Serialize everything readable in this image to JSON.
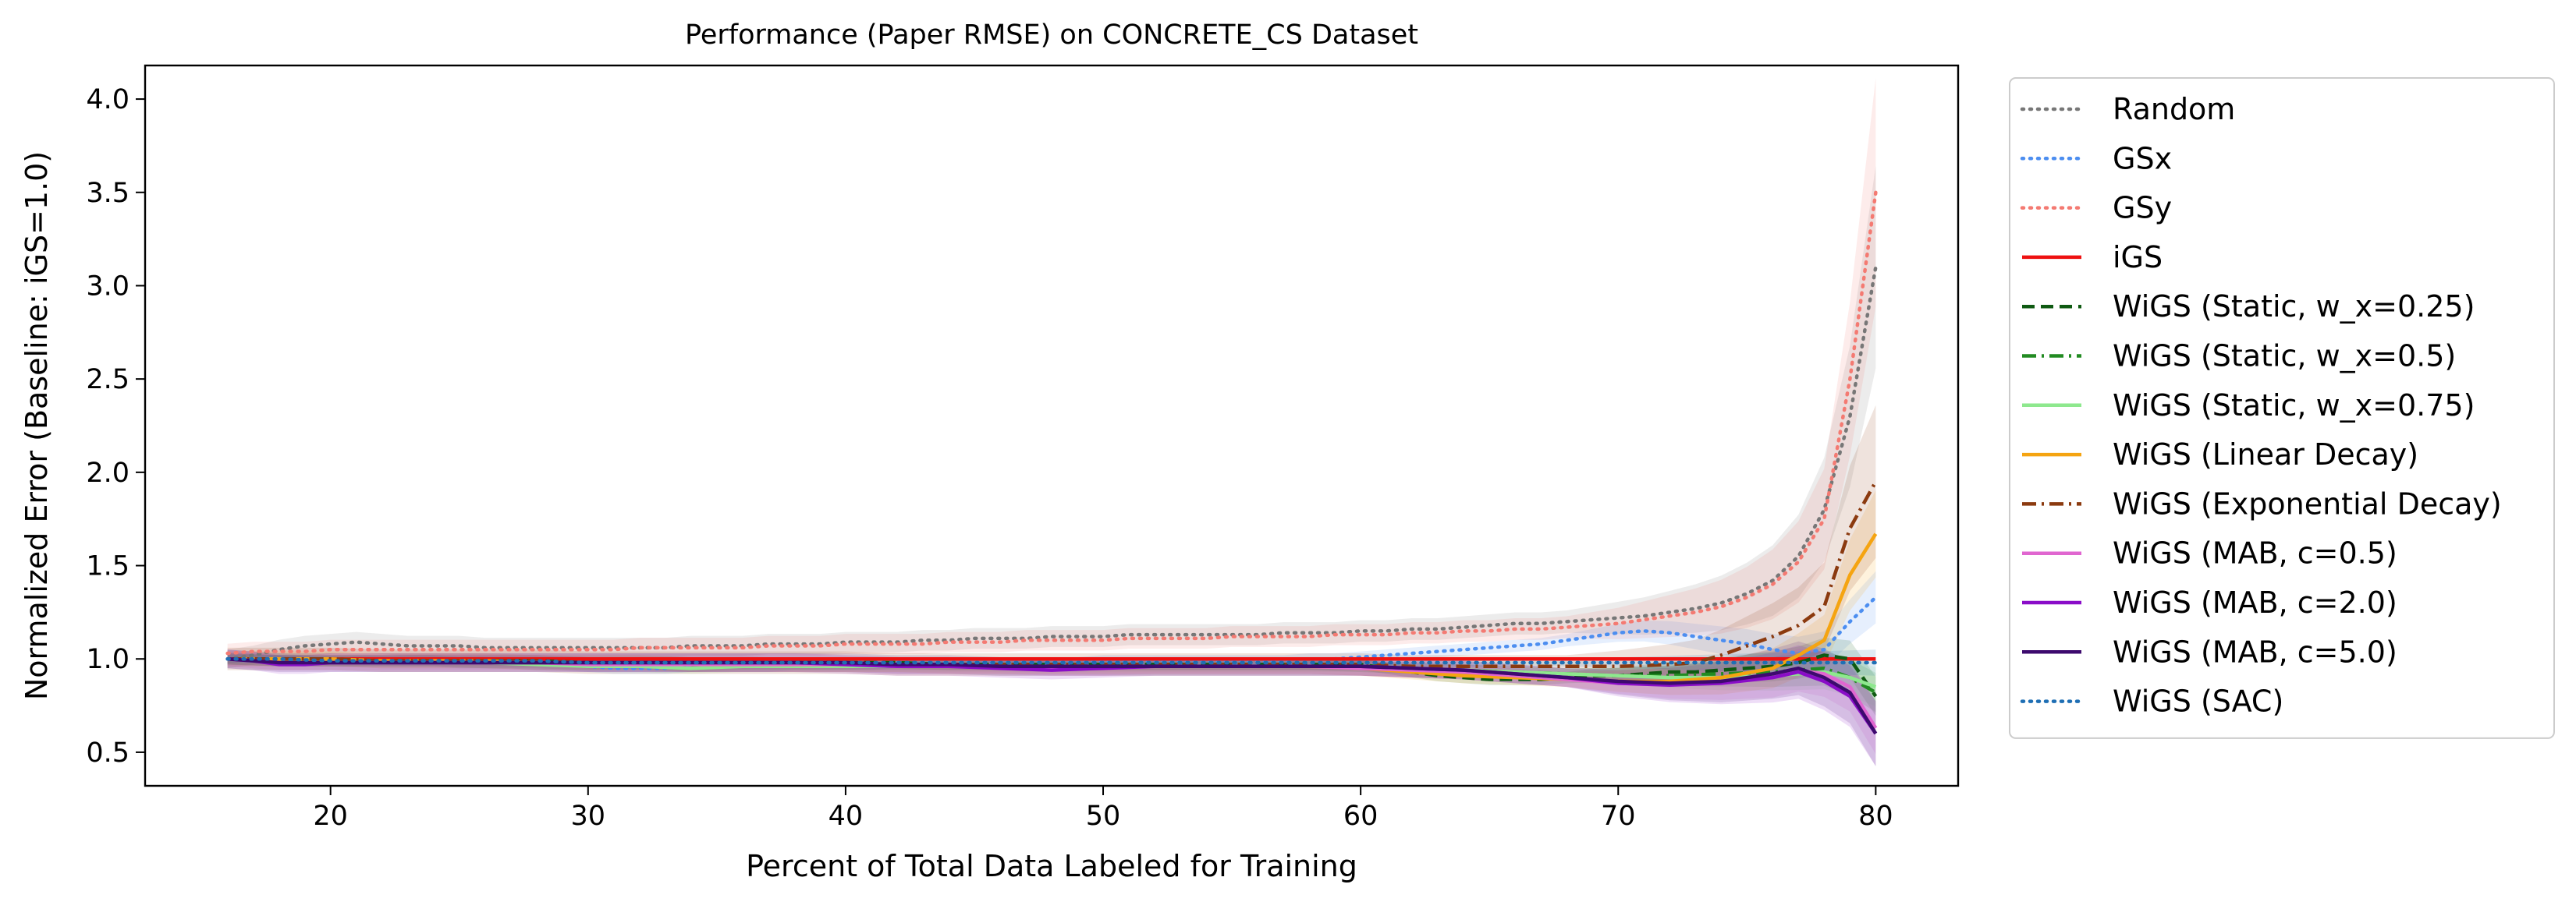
{
  "chart_data": {
    "type": "line",
    "title": "Performance (Paper RMSE) on CONCRETE_CS Dataset",
    "xlabel": "Percent of Total Data Labeled for Training",
    "ylabel": "Normalized Error (Baseline: iGS=1.0)",
    "xlim": [
      12.8,
      83.2
    ],
    "ylim": [
      0.32,
      4.18
    ],
    "xticks": [
      20,
      30,
      40,
      50,
      60,
      70,
      80
    ],
    "yticks": [
      0.5,
      1.0,
      1.5,
      2.0,
      2.5,
      3.0,
      3.5,
      4.0
    ],
    "xtick_labels": [
      "20",
      "30",
      "40",
      "50",
      "60",
      "70",
      "80"
    ],
    "ytick_labels": [
      "0.5",
      "1.0",
      "1.5",
      "2.0",
      "2.5",
      "3.0",
      "3.5",
      "4.0"
    ],
    "grid": false,
    "legend_position": "outside-right",
    "series": [
      {
        "name": "Random",
        "color": "#777777",
        "dash": "dotted",
        "x": [
          16,
          17,
          18,
          19,
          20,
          21,
          22,
          23,
          24,
          25,
          26,
          27,
          28,
          29,
          30,
          31,
          32,
          33,
          34,
          35,
          36,
          37,
          38,
          39,
          40,
          41,
          42,
          43,
          44,
          45,
          46,
          47,
          48,
          49,
          50,
          51,
          52,
          53,
          54,
          55,
          56,
          57,
          58,
          59,
          60,
          61,
          62,
          63,
          64,
          65,
          66,
          67,
          68,
          69,
          70,
          71,
          72,
          73,
          74,
          75,
          76,
          77,
          78,
          79,
          80
        ],
        "y": [
          1.0,
          1.02,
          1.05,
          1.07,
          1.08,
          1.09,
          1.08,
          1.07,
          1.07,
          1.07,
          1.06,
          1.06,
          1.06,
          1.06,
          1.06,
          1.06,
          1.06,
          1.06,
          1.07,
          1.07,
          1.07,
          1.08,
          1.08,
          1.08,
          1.09,
          1.09,
          1.09,
          1.1,
          1.1,
          1.11,
          1.11,
          1.11,
          1.12,
          1.12,
          1.12,
          1.13,
          1.13,
          1.13,
          1.13,
          1.13,
          1.13,
          1.14,
          1.14,
          1.14,
          1.15,
          1.15,
          1.16,
          1.16,
          1.17,
          1.18,
          1.19,
          1.19,
          1.2,
          1.21,
          1.22,
          1.23,
          1.25,
          1.27,
          1.3,
          1.35,
          1.42,
          1.55,
          1.8,
          2.3,
          3.1
        ],
        "band": 0.05
      },
      {
        "name": "GSx",
        "color": "#4c8ef0",
        "dash": "dotted",
        "x": [
          16,
          17,
          18,
          19,
          20,
          21,
          22,
          23,
          24,
          25,
          26,
          27,
          28,
          29,
          30,
          31,
          32,
          33,
          34,
          35,
          36,
          37,
          38,
          39,
          40,
          41,
          42,
          43,
          44,
          45,
          46,
          47,
          48,
          49,
          50,
          51,
          52,
          53,
          54,
          55,
          56,
          57,
          58,
          59,
          60,
          61,
          62,
          63,
          64,
          65,
          66,
          67,
          68,
          69,
          70,
          71,
          72,
          73,
          74,
          75,
          76,
          77,
          78,
          79,
          80
        ],
        "y": [
          1.0,
          1.0,
          1.0,
          0.99,
          0.99,
          0.99,
          0.99,
          0.99,
          0.99,
          0.98,
          0.98,
          0.98,
          0.97,
          0.97,
          0.96,
          0.95,
          0.95,
          0.95,
          0.96,
          0.96,
          0.96,
          0.96,
          0.97,
          0.97,
          0.97,
          0.97,
          0.98,
          0.98,
          0.98,
          0.98,
          0.98,
          0.98,
          0.98,
          0.98,
          0.99,
          0.99,
          0.99,
          0.99,
          0.99,
          0.99,
          0.99,
          0.99,
          1.0,
          1.0,
          1.01,
          1.02,
          1.03,
          1.04,
          1.05,
          1.06,
          1.07,
          1.08,
          1.1,
          1.12,
          1.14,
          1.15,
          1.14,
          1.12,
          1.1,
          1.08,
          1.05,
          1.03,
          1.05,
          1.2,
          1.33
        ],
        "band": 0.03
      },
      {
        "name": "GSy",
        "color": "#f47a72",
        "dash": "dotted",
        "x": [
          16,
          17,
          18,
          19,
          20,
          21,
          22,
          23,
          24,
          25,
          26,
          27,
          28,
          29,
          30,
          31,
          32,
          33,
          34,
          35,
          36,
          37,
          38,
          39,
          40,
          41,
          42,
          43,
          44,
          45,
          46,
          47,
          48,
          49,
          50,
          51,
          52,
          53,
          54,
          55,
          56,
          57,
          58,
          59,
          60,
          61,
          62,
          63,
          64,
          65,
          66,
          67,
          68,
          69,
          70,
          71,
          72,
          73,
          74,
          75,
          76,
          77,
          78,
          79,
          80
        ],
        "y": [
          1.03,
          1.04,
          1.04,
          1.04,
          1.05,
          1.05,
          1.05,
          1.05,
          1.05,
          1.05,
          1.05,
          1.05,
          1.05,
          1.05,
          1.05,
          1.05,
          1.06,
          1.06,
          1.06,
          1.06,
          1.06,
          1.07,
          1.07,
          1.07,
          1.08,
          1.08,
          1.08,
          1.08,
          1.09,
          1.09,
          1.09,
          1.1,
          1.1,
          1.1,
          1.1,
          1.11,
          1.11,
          1.11,
          1.11,
          1.12,
          1.12,
          1.12,
          1.12,
          1.13,
          1.13,
          1.13,
          1.14,
          1.14,
          1.15,
          1.15,
          1.16,
          1.16,
          1.17,
          1.18,
          1.19,
          1.21,
          1.23,
          1.25,
          1.28,
          1.33,
          1.4,
          1.52,
          1.75,
          2.5,
          3.5
        ],
        "band": 0.05
      },
      {
        "name": "iGS",
        "color": "#ee1111",
        "dash": "solid",
        "x": [
          16,
          80
        ],
        "y": [
          1.0,
          1.0
        ],
        "band": 0
      },
      {
        "name": "WiGS (Static, w_x=0.25)",
        "color": "#0f5a12",
        "dash": "dashed",
        "x": [
          16,
          18,
          20,
          22,
          24,
          26,
          28,
          30,
          32,
          34,
          36,
          38,
          40,
          42,
          44,
          46,
          48,
          50,
          52,
          54,
          56,
          58,
          60,
          61,
          62,
          63,
          64,
          65,
          66,
          67,
          68,
          69,
          70,
          71,
          72,
          73,
          74,
          75,
          76,
          77,
          78,
          79,
          80
        ],
        "y": [
          1.0,
          0.99,
          0.99,
          0.99,
          0.99,
          0.99,
          0.99,
          0.98,
          0.98,
          0.98,
          0.98,
          0.98,
          0.98,
          0.98,
          0.97,
          0.97,
          0.97,
          0.97,
          0.97,
          0.97,
          0.97,
          0.97,
          0.97,
          0.95,
          0.93,
          0.91,
          0.9,
          0.89,
          0.89,
          0.89,
          0.9,
          0.91,
          0.91,
          0.92,
          0.93,
          0.93,
          0.94,
          0.95,
          0.96,
          0.98,
          1.02,
          1.0,
          0.8
        ],
        "band": 0.03
      },
      {
        "name": "WiGS (Static, w_x=0.5)",
        "color": "#228b22",
        "dash": "dashdot",
        "x": [
          16,
          18,
          20,
          22,
          24,
          26,
          28,
          30,
          32,
          34,
          36,
          38,
          40,
          42,
          44,
          46,
          48,
          50,
          52,
          54,
          56,
          58,
          60,
          62,
          64,
          66,
          68,
          70,
          72,
          74,
          76,
          77,
          78,
          79,
          80
        ],
        "y": [
          1.0,
          0.99,
          0.99,
          0.99,
          0.99,
          0.98,
          0.98,
          0.97,
          0.97,
          0.96,
          0.97,
          0.97,
          0.97,
          0.97,
          0.97,
          0.97,
          0.97,
          0.97,
          0.97,
          0.97,
          0.97,
          0.97,
          0.96,
          0.95,
          0.94,
          0.93,
          0.92,
          0.91,
          0.91,
          0.92,
          0.93,
          0.94,
          0.95,
          0.9,
          0.82
        ],
        "band": 0.03
      },
      {
        "name": "WiGS (Static, w_x=0.75)",
        "color": "#8ee88e",
        "dash": "solid",
        "x": [
          16,
          18,
          20,
          22,
          24,
          26,
          28,
          30,
          32,
          34,
          36,
          38,
          40,
          42,
          44,
          46,
          48,
          50,
          52,
          54,
          56,
          58,
          60,
          62,
          64,
          66,
          68,
          70,
          72,
          74,
          76,
          77,
          78,
          79,
          80
        ],
        "y": [
          1.0,
          0.99,
          0.99,
          0.98,
          0.98,
          0.98,
          0.97,
          0.96,
          0.96,
          0.95,
          0.96,
          0.96,
          0.96,
          0.96,
          0.96,
          0.96,
          0.96,
          0.96,
          0.96,
          0.96,
          0.96,
          0.96,
          0.96,
          0.95,
          0.94,
          0.93,
          0.92,
          0.91,
          0.9,
          0.9,
          0.91,
          0.92,
          0.93,
          0.9,
          0.85
        ],
        "band": 0.03
      },
      {
        "name": "WiGS (Linear Decay)",
        "color": "#f5a411",
        "dash": "solid",
        "x": [
          16,
          18,
          20,
          22,
          24,
          26,
          28,
          30,
          32,
          34,
          36,
          38,
          40,
          42,
          44,
          46,
          48,
          50,
          52,
          54,
          56,
          58,
          60,
          62,
          64,
          66,
          68,
          70,
          72,
          74,
          76,
          77,
          78,
          79,
          80
        ],
        "y": [
          1.0,
          1.0,
          1.0,
          0.99,
          0.99,
          0.99,
          0.98,
          0.98,
          0.98,
          0.97,
          0.97,
          0.97,
          0.97,
          0.97,
          0.96,
          0.96,
          0.96,
          0.96,
          0.96,
          0.96,
          0.96,
          0.96,
          0.95,
          0.93,
          0.91,
          0.9,
          0.89,
          0.88,
          0.88,
          0.9,
          0.95,
          1.02,
          1.1,
          1.45,
          1.67
        ],
        "band": 0.04
      },
      {
        "name": "WiGS (Exponential Decay)",
        "color": "#8b3a0f",
        "dash": "dashdot",
        "x": [
          16,
          18,
          20,
          22,
          24,
          26,
          28,
          30,
          32,
          34,
          36,
          38,
          40,
          42,
          44,
          46,
          48,
          50,
          52,
          54,
          56,
          58,
          60,
          62,
          64,
          66,
          68,
          70,
          72,
          73,
          74,
          75,
          76,
          77,
          78,
          79,
          80
        ],
        "y": [
          1.0,
          1.0,
          1.0,
          0.99,
          0.99,
          0.99,
          0.99,
          0.98,
          0.98,
          0.98,
          0.98,
          0.98,
          0.98,
          0.97,
          0.97,
          0.97,
          0.97,
          0.97,
          0.97,
          0.97,
          0.97,
          0.97,
          0.97,
          0.96,
          0.96,
          0.96,
          0.96,
          0.96,
          0.97,
          0.98,
          1.02,
          1.07,
          1.12,
          1.18,
          1.28,
          1.7,
          1.95
        ],
        "band": 0.06
      },
      {
        "name": "WiGS (MAB, c=0.5)",
        "color": "#e066d0",
        "dash": "solid",
        "x": [
          16,
          18,
          20,
          22,
          24,
          26,
          28,
          30,
          32,
          34,
          36,
          38,
          40,
          42,
          44,
          46,
          48,
          50,
          52,
          54,
          56,
          58,
          60,
          62,
          64,
          66,
          68,
          70,
          72,
          74,
          76,
          77,
          78,
          79,
          80
        ],
        "y": [
          1.0,
          0.98,
          0.98,
          0.98,
          0.98,
          0.98,
          0.98,
          0.97,
          0.97,
          0.97,
          0.97,
          0.97,
          0.97,
          0.96,
          0.96,
          0.96,
          0.95,
          0.95,
          0.96,
          0.96,
          0.96,
          0.96,
          0.95,
          0.94,
          0.93,
          0.91,
          0.89,
          0.87,
          0.86,
          0.87,
          0.9,
          0.94,
          0.92,
          0.85,
          0.63
        ],
        "band": 0.04
      },
      {
        "name": "WiGS (MAB, c=2.0)",
        "color": "#8a0dc8",
        "dash": "solid",
        "x": [
          16,
          17,
          18,
          19,
          20,
          21,
          22,
          24,
          26,
          28,
          30,
          32,
          34,
          36,
          38,
          40,
          42,
          44,
          46,
          48,
          50,
          52,
          54,
          56,
          58,
          60,
          62,
          64,
          66,
          68,
          70,
          72,
          74,
          76,
          77,
          78,
          79,
          80
        ],
        "y": [
          1.0,
          0.99,
          0.97,
          0.97,
          0.98,
          0.98,
          0.98,
          0.98,
          0.98,
          0.98,
          0.98,
          0.98,
          0.98,
          0.98,
          0.98,
          0.97,
          0.96,
          0.96,
          0.95,
          0.94,
          0.95,
          0.96,
          0.96,
          0.96,
          0.96,
          0.96,
          0.95,
          0.94,
          0.92,
          0.9,
          0.87,
          0.86,
          0.87,
          0.9,
          0.93,
          0.88,
          0.8,
          0.6
        ],
        "band": 0.05
      },
      {
        "name": "WiGS (MAB, c=5.0)",
        "color": "#3d0a6e",
        "dash": "solid",
        "x": [
          16,
          18,
          20,
          22,
          24,
          26,
          28,
          30,
          32,
          34,
          36,
          38,
          40,
          42,
          44,
          46,
          48,
          50,
          52,
          54,
          56,
          58,
          60,
          62,
          64,
          66,
          68,
          70,
          72,
          74,
          76,
          77,
          78,
          79,
          80
        ],
        "y": [
          1.0,
          0.98,
          0.98,
          0.98,
          0.98,
          0.98,
          0.98,
          0.98,
          0.98,
          0.98,
          0.98,
          0.98,
          0.98,
          0.97,
          0.97,
          0.96,
          0.96,
          0.96,
          0.96,
          0.96,
          0.96,
          0.96,
          0.96,
          0.95,
          0.94,
          0.92,
          0.9,
          0.88,
          0.87,
          0.88,
          0.92,
          0.95,
          0.9,
          0.82,
          0.6
        ],
        "band": 0.05
      },
      {
        "name": "WiGS (SAC)",
        "color": "#1f6fb4",
        "dash": "dotted",
        "x": [
          16,
          18,
          20,
          22,
          24,
          26,
          28,
          30,
          32,
          34,
          36,
          38,
          40,
          42,
          44,
          46,
          48,
          50,
          52,
          54,
          56,
          58,
          60,
          62,
          64,
          66,
          68,
          70,
          72,
          74,
          76,
          77,
          78,
          79,
          80
        ],
        "y": [
          1.0,
          1.0,
          0.99,
          0.99,
          0.99,
          0.99,
          0.99,
          0.98,
          0.98,
          0.98,
          0.98,
          0.98,
          0.98,
          0.98,
          0.98,
          0.98,
          0.98,
          0.98,
          0.98,
          0.98,
          0.98,
          0.98,
          0.98,
          0.98,
          0.98,
          0.98,
          0.98,
          0.98,
          0.98,
          0.98,
          0.98,
          0.98,
          0.98,
          0.98,
          0.98
        ],
        "band": 0.02
      }
    ]
  }
}
